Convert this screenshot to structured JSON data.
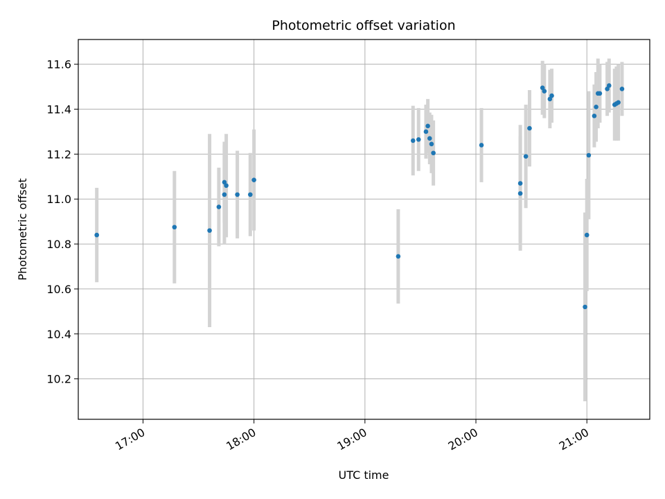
{
  "chart_data": {
    "type": "scatter",
    "title": "Photometric offset variation",
    "xlabel": "UTC time",
    "ylabel": "Photometric offset",
    "x_unit": "minutes after 16:00 UTC",
    "xlim": [
      "16:25",
      "21:34"
    ],
    "ylim": [
      10.02,
      11.71
    ],
    "x_ticks": [
      "17:00",
      "18:00",
      "19:00",
      "20:00",
      "21:00"
    ],
    "y_ticks": [
      10.2,
      10.4,
      10.6,
      10.8,
      11.0,
      11.2,
      11.4,
      11.6
    ],
    "grid": true,
    "marker_color": "#1f77b4",
    "errorbar_color": "#d3d3d3",
    "series": [
      {
        "points": [
          {
            "t": "16:35",
            "y": 10.84,
            "err": 0.21
          },
          {
            "t": "17:17",
            "y": 10.875,
            "err": 0.25
          },
          {
            "t": "17:36",
            "y": 10.86,
            "err": 0.43
          },
          {
            "t": "17:41",
            "y": 10.965,
            "err": 0.175
          },
          {
            "t": "17:44",
            "y": 11.02,
            "err": 0.22
          },
          {
            "t": "17:44",
            "y": 11.075,
            "err": 0.18
          },
          {
            "t": "17:45",
            "y": 11.06,
            "err": 0.23
          },
          {
            "t": "17:51",
            "y": 11.02,
            "err": 0.195
          },
          {
            "t": "17:58",
            "y": 11.02,
            "err": 0.185
          },
          {
            "t": "18:00",
            "y": 11.085,
            "err": 0.225
          },
          {
            "t": "19:18",
            "y": 10.745,
            "err": 0.21
          },
          {
            "t": "19:26",
            "y": 11.26,
            "err": 0.155
          },
          {
            "t": "19:29",
            "y": 11.265,
            "err": 0.14
          },
          {
            "t": "19:33",
            "y": 11.3,
            "err": 0.12
          },
          {
            "t": "19:34",
            "y": 11.325,
            "err": 0.12
          },
          {
            "t": "19:35",
            "y": 11.27,
            "err": 0.115
          },
          {
            "t": "19:36",
            "y": 11.245,
            "err": 0.13
          },
          {
            "t": "19:37",
            "y": 11.205,
            "err": 0.145
          },
          {
            "t": "20:03",
            "y": 11.24,
            "err": 0.165
          },
          {
            "t": "20:24",
            "y": 11.025,
            "err": 0.255
          },
          {
            "t": "20:24",
            "y": 11.07,
            "err": 0.26
          },
          {
            "t": "20:27",
            "y": 11.19,
            "err": 0.23
          },
          {
            "t": "20:29",
            "y": 11.315,
            "err": 0.17
          },
          {
            "t": "20:36",
            "y": 11.495,
            "err": 0.12
          },
          {
            "t": "20:37",
            "y": 11.48,
            "err": 0.12
          },
          {
            "t": "20:40",
            "y": 11.445,
            "err": 0.13
          },
          {
            "t": "20:41",
            "y": 11.46,
            "err": 0.12
          },
          {
            "t": "20:59",
            "y": 10.52,
            "err": 0.42
          },
          {
            "t": "21:00",
            "y": 10.84,
            "err": 0.25
          },
          {
            "t": "21:01",
            "y": 11.195,
            "err": 0.285
          },
          {
            "t": "21:04",
            "y": 11.37,
            "err": 0.14
          },
          {
            "t": "21:05",
            "y": 11.41,
            "err": 0.155
          },
          {
            "t": "21:06",
            "y": 11.47,
            "err": 0.155
          },
          {
            "t": "21:07",
            "y": 11.47,
            "err": 0.13
          },
          {
            "t": "21:11",
            "y": 11.49,
            "err": 0.12
          },
          {
            "t": "21:12",
            "y": 11.505,
            "err": 0.12
          },
          {
            "t": "21:15",
            "y": 11.42,
            "err": 0.16
          },
          {
            "t": "21:16",
            "y": 11.425,
            "err": 0.165
          },
          {
            "t": "21:17",
            "y": 11.43,
            "err": 0.17
          },
          {
            "t": "21:19",
            "y": 11.49,
            "err": 0.12
          }
        ]
      }
    ]
  }
}
